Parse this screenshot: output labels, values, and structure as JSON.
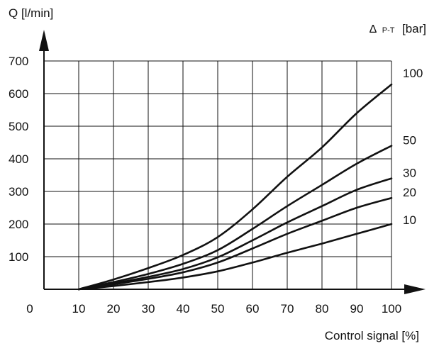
{
  "chart_data": {
    "type": "line",
    "ylabel": "Q [l/min]",
    "xlabel": "Control signal [%]",
    "legend_title": "Δ P-T [bar]",
    "legend_title_parts": {
      "delta": "Δ",
      "sub": "P-T",
      "unit": "[bar]"
    },
    "origin_label": "0",
    "xlim": [
      0,
      100
    ],
    "ylim": [
      0,
      700
    ],
    "x_ticks": [
      10,
      20,
      30,
      40,
      50,
      60,
      70,
      80,
      90,
      100
    ],
    "x_tick_labels": [
      "10",
      "20",
      "30",
      "40",
      "50",
      "60",
      "70",
      "80",
      "90",
      "100"
    ],
    "y_ticks": [
      100,
      200,
      300,
      400,
      500,
      600,
      700
    ],
    "y_tick_labels": [
      "100",
      "200",
      "300",
      "400",
      "500",
      "600",
      "700"
    ],
    "grid": true,
    "legend_placement": "right end of each curve",
    "line_color": "#111111",
    "series": [
      {
        "name": "100",
        "x": [
          10,
          20,
          30,
          40,
          50,
          60,
          70,
          80,
          90,
          100
        ],
        "values": [
          0,
          30,
          65,
          105,
          160,
          245,
          345,
          435,
          540,
          628
        ]
      },
      {
        "name": "50",
        "x": [
          10,
          20,
          30,
          40,
          50,
          60,
          70,
          80,
          90,
          100
        ],
        "values": [
          0,
          22,
          47,
          78,
          120,
          185,
          255,
          320,
          385,
          440
        ]
      },
      {
        "name": "30",
        "x": [
          10,
          20,
          30,
          40,
          50,
          60,
          70,
          80,
          90,
          100
        ],
        "values": [
          0,
          18,
          38,
          62,
          98,
          150,
          205,
          255,
          305,
          340
        ]
      },
      {
        "name": "20",
        "x": [
          10,
          20,
          30,
          40,
          50,
          60,
          70,
          80,
          90,
          100
        ],
        "values": [
          0,
          15,
          32,
          52,
          82,
          125,
          170,
          210,
          250,
          280
        ]
      },
      {
        "name": "10",
        "x": [
          10,
          20,
          30,
          40,
          50,
          60,
          70,
          80,
          90,
          100
        ],
        "values": [
          0,
          10,
          22,
          36,
          55,
          82,
          112,
          140,
          170,
          200
        ]
      }
    ]
  }
}
